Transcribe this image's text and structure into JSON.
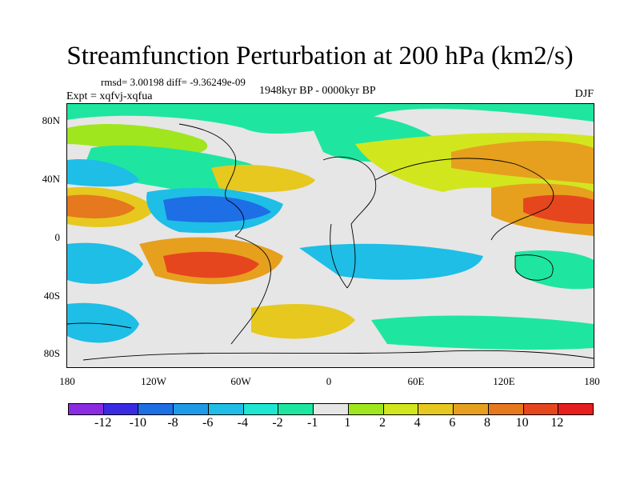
{
  "title": "Streamfunction Perturbation at 200 hPa (km2/s)",
  "stats": "rmsd= 3.00198 diff= -9.36249e-09",
  "experiment": "Expt = xqfvj-xqfua",
  "period": "1948kyr BP - 0000kyr BP",
  "season": "DJF",
  "y_ticks": [
    "80N",
    "40N",
    "0",
    "40S",
    "80S"
  ],
  "x_ticks": [
    "180",
    "120W",
    "60W",
    "0",
    "60E",
    "120E",
    "180"
  ],
  "colorbar": {
    "colors": [
      "#8a2be2",
      "#3a2be2",
      "#1e6ee6",
      "#1e9be6",
      "#1ebee6",
      "#1ee6d2",
      "#1ee6a0",
      "#e6e6e6",
      "#a0e61e",
      "#d2e61e",
      "#e6c81e",
      "#e6a01e",
      "#e6781e",
      "#e6461e",
      "#e61e1e"
    ],
    "labels": [
      "-12",
      "-10",
      "-8",
      "-6",
      "-4",
      "-2",
      "-1",
      "1",
      "2",
      "4",
      "6",
      "8",
      "10",
      "12"
    ]
  }
}
